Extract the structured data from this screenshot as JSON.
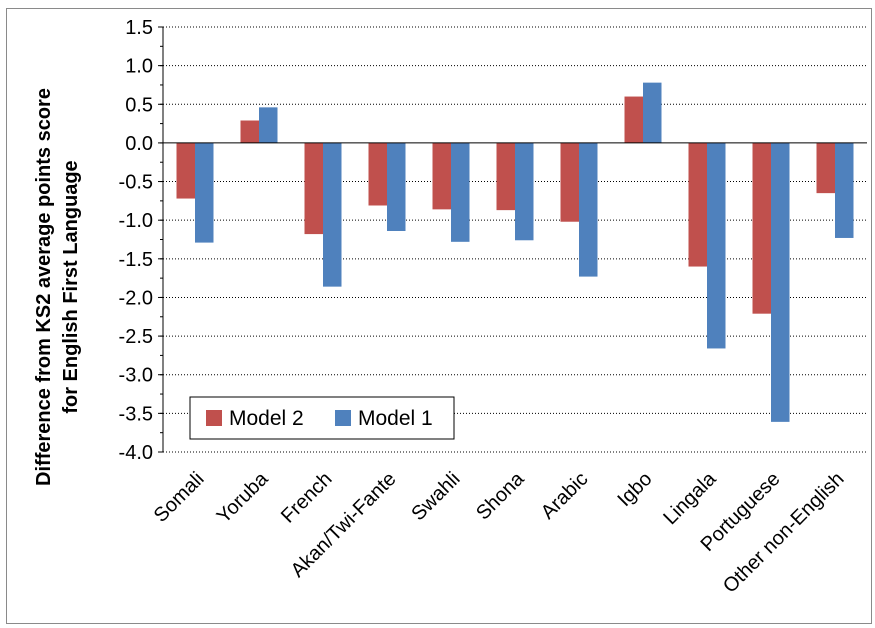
{
  "chart_data": {
    "type": "bar",
    "title": "",
    "ylabel_line1": "Difference from KS2 average points score",
    "ylabel_line2": "for English First Language",
    "xlabel": "",
    "ylim": [
      -4.0,
      1.5
    ],
    "yticks": [
      "1.5",
      "1.0",
      "0.5",
      "0.0",
      "-0.5",
      "-1.0",
      "-1.5",
      "-2.0",
      "-2.5",
      "-3.0",
      "-3.5",
      "-4.0"
    ],
    "categories": [
      "Somali",
      "Yoruba",
      "French",
      "Akan/Twi-Fante",
      "Swahli",
      "Shona",
      "Arabic",
      "Igbo",
      "Lingala",
      "Portuguese",
      "Other non-English"
    ],
    "series": [
      {
        "name": "Model 2",
        "color": "#c0504d",
        "values": [
          -0.72,
          0.29,
          -1.18,
          -0.81,
          -0.86,
          -0.87,
          -1.02,
          0.6,
          -1.6,
          -2.21,
          -0.65
        ]
      },
      {
        "name": "Model 1",
        "color": "#4f81bd",
        "values": [
          -1.29,
          0.46,
          -1.86,
          -1.14,
          -1.28,
          -1.26,
          -1.73,
          0.78,
          -2.66,
          -3.61,
          -1.23
        ]
      }
    ],
    "legend_position": "bottom-left",
    "grid": "horizontal dotted"
  }
}
